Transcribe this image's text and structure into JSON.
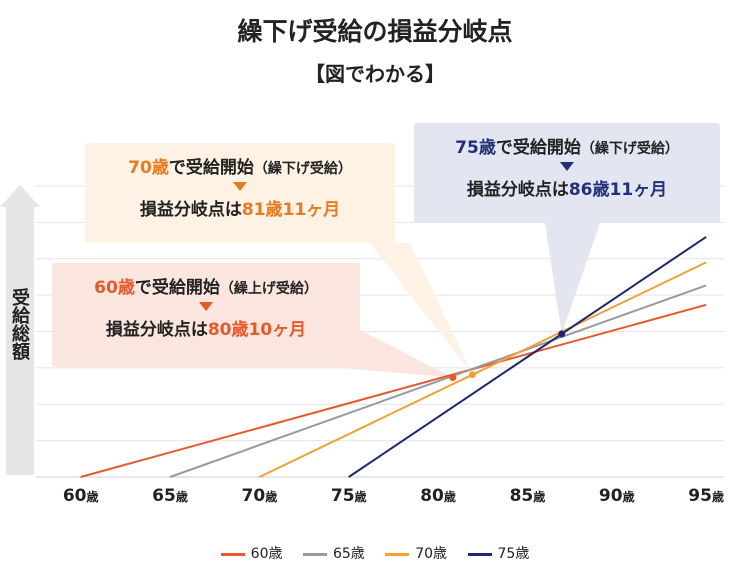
{
  "title": "繰下げ受給の損益分岐点",
  "subtitle": "【図でわかる】",
  "ylabel": "受給総額",
  "colors": {
    "s60": "#e8582a",
    "s65": "#9a9a9a",
    "s70": "#f5a02f",
    "s75": "#1c2672",
    "orange_text": "#ea7a1e",
    "red_text": "#e8582a",
    "navy_text": "#22307a"
  },
  "callouts": {
    "c70": {
      "age": "70歳",
      "start": "で受給開始",
      "type": "（繰下げ受給）",
      "breakeven_prefix": "損益分岐点は",
      "breakeven_value": "81歳11ヶ月"
    },
    "c60": {
      "age": "60歳",
      "start": "で受給開始",
      "type": "（繰上げ受給）",
      "breakeven_prefix": "損益分岐点は",
      "breakeven_value": "80歳10ヶ月"
    },
    "c75": {
      "age": "75歳",
      "start": "で受給開始",
      "type": "（繰下げ受給）",
      "breakeven_prefix": "損益分岐点は",
      "breakeven_value": "86歳11ヶ月"
    }
  },
  "chart_data": {
    "type": "line",
    "xlabel": "",
    "ylabel": "受給総額",
    "xlim": [
      57.5,
      96
    ],
    "x_ticks": [
      60,
      65,
      70,
      75,
      80,
      85,
      90,
      95
    ],
    "x_tick_unit": "歳",
    "ylim": [
      0,
      12
    ],
    "grid": true,
    "legend_position": "bottom",
    "series": [
      {
        "name": "60歳",
        "key": "s60",
        "x": [
          60,
          95
        ],
        "y": [
          0,
          7.1
        ]
      },
      {
        "name": "65歳",
        "key": "s65",
        "x": [
          65,
          95
        ],
        "y": [
          0,
          7.9
        ]
      },
      {
        "name": "70歳",
        "key": "s70",
        "x": [
          70,
          95
        ],
        "y": [
          0,
          8.85
        ]
      },
      {
        "name": "75歳",
        "key": "s75",
        "x": [
          75,
          95
        ],
        "y": [
          0,
          9.9
        ]
      }
    ],
    "breakeven_points": [
      {
        "series": "s60",
        "x": 80.83,
        "y": 4.1
      },
      {
        "series": "s70",
        "x": 81.92,
        "y": 4.22
      },
      {
        "series": "s75",
        "x": 86.92,
        "y": 5.9
      }
    ]
  }
}
